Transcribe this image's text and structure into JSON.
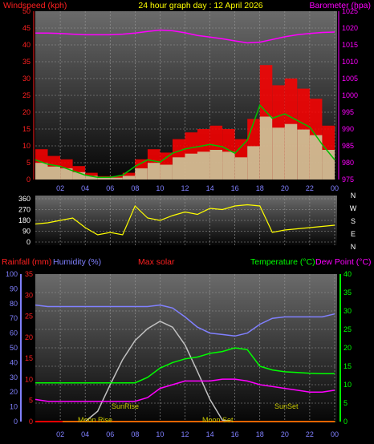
{
  "header": {
    "title": "24 hour graph day : 12 April 2026",
    "wind_label": "Windspeed (kph)",
    "baro_label": "Barometer (hpa)"
  },
  "bottom_header": {
    "rain_label": "Rainfall (mm)",
    "humidity_label": "Humidity (%)",
    "solar_label": "Max solar",
    "temp_label": "Temperature (°C)",
    "dew_label": "Dew Point (°C)"
  },
  "compass": [
    "N",
    "W",
    "S",
    "E",
    "N"
  ],
  "annotations": {
    "sunrise": "SunRise",
    "sunset": "SunSet",
    "moonrise": "Moon Rise",
    "moonset": "Moon Set"
  },
  "colors": {
    "wind": "#ff0000",
    "wind_avg": "#00c000",
    "wind_light": "#c8ffc8",
    "baro": "#ff00ff",
    "dir": "#ffff00",
    "humidity": "#8080ff",
    "temp": "#00ff00",
    "dew": "#ff00ff",
    "solar": "#c0c0c0",
    "rain": "#ff0000",
    "annotation": "#c8c800"
  },
  "chart_data": [
    {
      "type": "line",
      "title": "24 hour graph day : 12 April 2026",
      "x_ticks": [
        "02",
        "04",
        "06",
        "08",
        "10",
        "12",
        "14",
        "16",
        "18",
        "20",
        "22",
        "00"
      ],
      "y_left_label": "Windspeed (kph)",
      "y_left_ticks": [
        0,
        5,
        10,
        15,
        20,
        25,
        30,
        35,
        40,
        45,
        50
      ],
      "y_right_label": "Barometer (hpa)",
      "y_right_ticks": [
        975,
        980,
        985,
        990,
        995,
        1000,
        1005,
        1010,
        1015,
        1020,
        1025
      ],
      "x_hours": [
        0,
        1,
        2,
        3,
        4,
        5,
        6,
        7,
        8,
        9,
        10,
        11,
        12,
        13,
        14,
        15,
        16,
        17,
        18,
        19,
        20,
        21,
        22,
        23,
        24
      ],
      "series": [
        {
          "name": "Windspeed (kph)",
          "axis": "left",
          "values": [
            9,
            7,
            6,
            4,
            2,
            1,
            1,
            2,
            6,
            9,
            8,
            12,
            14,
            15,
            16,
            15,
            12,
            18,
            34,
            28,
            30,
            27,
            24,
            16,
            9
          ]
        },
        {
          "name": "Barometer (hpa)",
          "axis": "right",
          "values": [
            1018.5,
            1018.5,
            1018.4,
            1018.2,
            1018,
            1018,
            1018,
            1018.2,
            1018.5,
            1019,
            1019.4,
            1019.2,
            1018.6,
            1017.8,
            1017.3,
            1016.8,
            1016.2,
            1015.6,
            1015.8,
            1016.6,
            1017.4,
            1018,
            1018.4,
            1018.7,
            1018.8
          ]
        }
      ]
    },
    {
      "type": "line",
      "x_ticks": [
        "02",
        "04",
        "06",
        "08",
        "10",
        "12",
        "14",
        "16",
        "18",
        "20",
        "22",
        "00"
      ],
      "y_left_ticks": [
        0,
        90,
        180,
        270,
        360
      ],
      "x_hours": [
        0,
        1,
        2,
        3,
        4,
        5,
        6,
        7,
        8,
        9,
        10,
        11,
        12,
        13,
        14,
        15,
        16,
        17,
        18,
        19,
        20,
        21,
        22,
        23,
        24
      ],
      "series": [
        {
          "name": "Wind direction",
          "axis": "left",
          "values": [
            150,
            160,
            180,
            200,
            120,
            60,
            80,
            60,
            300,
            200,
            180,
            220,
            250,
            230,
            280,
            270,
            300,
            310,
            300,
            80,
            100,
            110,
            120,
            130,
            140
          ]
        }
      ]
    },
    {
      "type": "line",
      "x_ticks": [
        "02",
        "04",
        "06",
        "08",
        "10",
        "12",
        "14",
        "16",
        "18",
        "20",
        "22",
        "00"
      ],
      "y_rain_ticks": [
        0,
        5,
        10,
        15,
        20,
        25,
        30,
        35
      ],
      "y_humidity_ticks": [
        0,
        10,
        20,
        30,
        40,
        50,
        60,
        70,
        80,
        90,
        100
      ],
      "y_temp_ticks": [
        0,
        5,
        10,
        15,
        20,
        25,
        30,
        35,
        40
      ],
      "x_hours": [
        0,
        1,
        2,
        3,
        4,
        5,
        6,
        7,
        8,
        9,
        10,
        11,
        12,
        13,
        14,
        15,
        16,
        17,
        18,
        19,
        20,
        21,
        22,
        23,
        24
      ],
      "series": [
        {
          "name": "Humidity (%)",
          "axis": "humidity",
          "values": [
            79,
            78,
            78,
            78,
            78,
            78,
            78,
            78,
            78,
            78,
            79,
            77,
            71,
            64,
            60,
            59,
            58,
            60,
            66,
            70,
            71,
            71,
            71,
            71,
            73
          ]
        },
        {
          "name": "Temperature (°C)",
          "axis": "temp",
          "values": [
            10.5,
            10.5,
            10.5,
            10.5,
            10.5,
            10.5,
            10.5,
            10.5,
            10.5,
            12,
            14.5,
            16,
            17,
            17.5,
            18.5,
            19,
            20,
            19.5,
            15,
            14,
            13.5,
            13.3,
            13.1,
            13,
            13
          ]
        },
        {
          "name": "Dew Point (°C)",
          "axis": "temp",
          "values": [
            6,
            5.5,
            5.5,
            5.5,
            5.5,
            5.5,
            5.5,
            5.5,
            5.5,
            6.5,
            9,
            10,
            11,
            11,
            11,
            11.5,
            11.5,
            11,
            10,
            9.5,
            9,
            8.5,
            8,
            8,
            8.5
          ]
        },
        {
          "name": "Max solar",
          "axis": "humidity",
          "values": [
            0,
            0,
            0,
            0,
            0,
            7,
            25,
            42,
            55,
            63,
            68,
            64,
            52,
            34,
            15,
            1,
            0,
            0,
            0,
            0,
            0,
            0,
            0,
            0,
            0
          ]
        },
        {
          "name": "Rainfall (mm)",
          "axis": "rain",
          "values": [
            0,
            0,
            0,
            0,
            0,
            0,
            0,
            0,
            0,
            0,
            0,
            0,
            0,
            0,
            0,
            0,
            0,
            0,
            0,
            0,
            0,
            0,
            0,
            0,
            0
          ]
        }
      ]
    }
  ]
}
